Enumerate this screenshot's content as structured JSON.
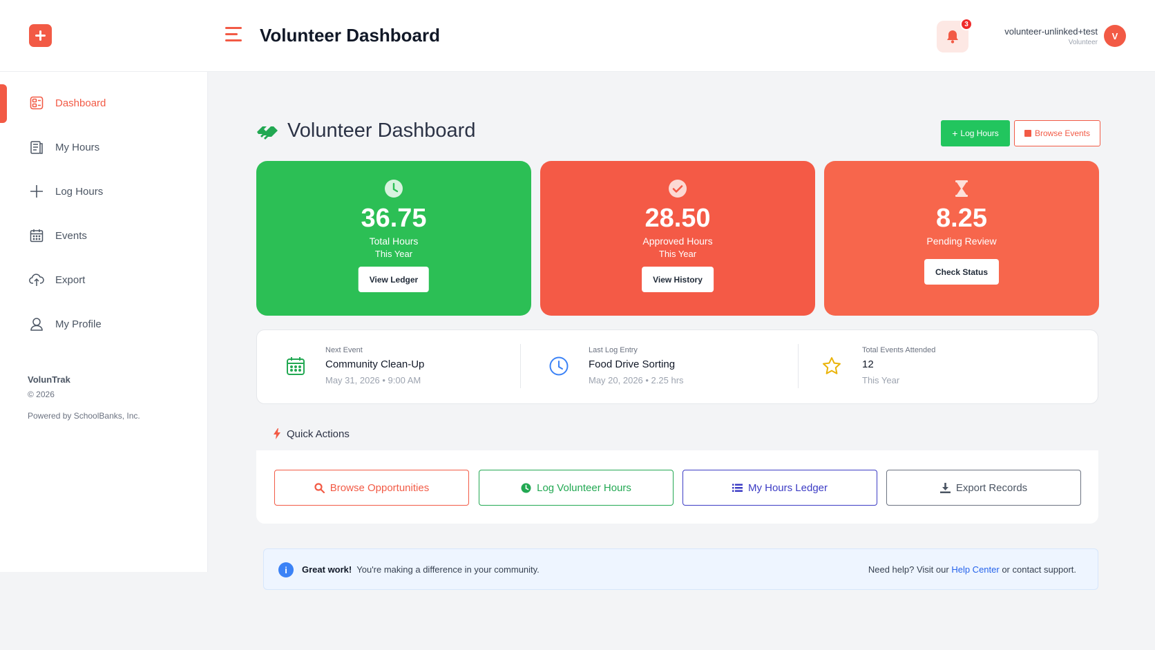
{
  "header": {
    "title": "Volunteer Dashboard",
    "notifications_count": "3",
    "user_name": "volunteer-unlinked+test",
    "user_role": "Volunteer",
    "avatar_initial": "V"
  },
  "sidebar": {
    "items": [
      {
        "label": "Dashboard",
        "icon": "dashboard-icon",
        "active": true
      },
      {
        "label": "My Hours",
        "icon": "clipboard-icon"
      },
      {
        "label": "Log Hours",
        "icon": "plus-icon"
      },
      {
        "label": "Events",
        "icon": "calendar-icon"
      },
      {
        "label": "Export",
        "icon": "cloud-upload-icon"
      },
      {
        "label": "My Profile",
        "icon": "user-icon"
      }
    ],
    "brand": "VolunTrak",
    "copyright": "© 2026",
    "powered_by": "Powered by SchoolBanks, Inc."
  },
  "main": {
    "title": "Volunteer Dashboard",
    "log_hours_label": "Log Hours",
    "browse_events_label": "Browse Events"
  },
  "stats": [
    {
      "value": "36.75",
      "label": "Total Hours",
      "sub": "This Year",
      "button": "View Ledger",
      "icon": "clock-icon",
      "color": "#2cbf55"
    },
    {
      "value": "28.50",
      "label": "Approved Hours",
      "sub": "This Year",
      "button": "View History",
      "icon": "check-circle-icon",
      "color": "#f45a46"
    },
    {
      "value": "8.25",
      "label": "Pending Review",
      "button": "Check Status",
      "icon": "hourglass-icon",
      "color": "#f7664c"
    }
  ],
  "info": [
    {
      "label": "Next Event",
      "value": "Community Clean-Up",
      "sub": "May 31, 2026 • 9:00 AM",
      "icon": "calendar-icon"
    },
    {
      "label": "Last Log Entry",
      "value": "Food Drive Sorting",
      "sub": "May 20, 2026 • 2.25 hrs",
      "icon": "clock-icon"
    },
    {
      "label": "Total Events Attended",
      "value": "12",
      "sub": "This Year",
      "icon": "star-icon"
    }
  ],
  "quick_actions": {
    "title": "Quick Actions",
    "buttons": [
      {
        "label": "Browse Opportunities",
        "icon": "search-icon",
        "color": "#f25a45"
      },
      {
        "label": "Log Volunteer Hours",
        "icon": "clock-icon",
        "color": "#22a852"
      },
      {
        "label": "My Hours Ledger",
        "icon": "list-icon",
        "color": "#3b3bc4"
      },
      {
        "label": "Export Records",
        "icon": "download-icon",
        "color": "#4b5563"
      }
    ]
  },
  "alert": {
    "strong": "Great work!",
    "message": "You're making a difference in your community.",
    "help_prefix": "Need help? Visit our",
    "help_link": "Help Center",
    "help_suffix": "or contact support."
  }
}
